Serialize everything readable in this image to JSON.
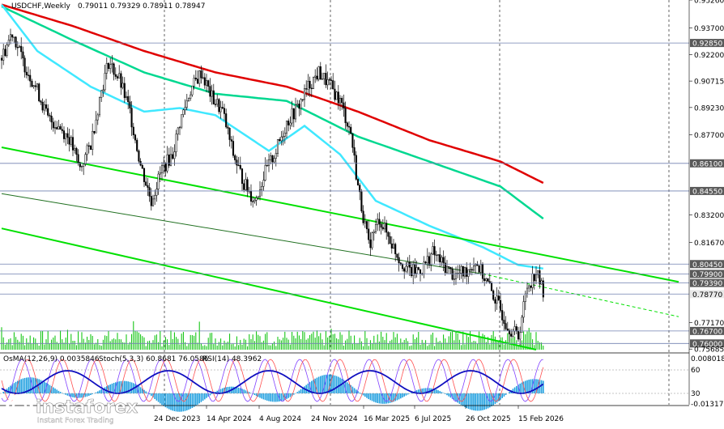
{
  "header": {
    "symbol": "USDCHF,Weekly",
    "ohlc": "0.79011 0.79329 0.78911 0.78947"
  },
  "indicators_label": {
    "osma": "OsMA(12,26,9) 0.0035846",
    "stoch": "Stoch(5,3,3) 60.8681 76.0586",
    "rsi": "RSI(14) 48.3962"
  },
  "colors": {
    "ema200": "#e00000",
    "ema144": "#00d890",
    "ema50": "#40e8ff",
    "channel": "#00e000",
    "histogram": "#20a0e0",
    "volume": "#00c000",
    "stoch_main": "#8040ff",
    "stoch_signal": "#ff5050",
    "rsi": "#1010c0"
  },
  "chart_data": {
    "type": "candlestick",
    "instrument": "USDCHF",
    "timeframe": "Weekly",
    "ylim": [
      0.7565,
      0.9526
    ],
    "price_axis": [
      "0.95260",
      "0.93700",
      "0.92850",
      "0.92200",
      "0.90715",
      "0.89230",
      "0.87700",
      "0.86100",
      "0.84550",
      "0.83200",
      "0.81670",
      "0.80450",
      "0.79900",
      "0.79390",
      "0.78770",
      "0.77170",
      "0.76700",
      "0.76000",
      "0.75685"
    ],
    "highlighted_levels": [
      "0.92850",
      "0.86100",
      "0.84550",
      "0.80450",
      "0.79900",
      "0.79390",
      "0.78770",
      "0.76700",
      "0.76000"
    ],
    "current_price": "0.78770",
    "x_labels": [
      "24 Dec 2023",
      "14 Apr 2024",
      "4 Aug 2024",
      "24 Nov 2024",
      "16 Mar 2025",
      "6 Jul 2025",
      "26 Oct 2025",
      "15 Feb 2026"
    ],
    "close_path": [
      [
        0,
        0.92
      ],
      [
        6,
        0.935
      ],
      [
        12,
        0.918
      ],
      [
        20,
        0.902
      ],
      [
        26,
        0.886
      ],
      [
        32,
        0.882
      ],
      [
        38,
        0.875
      ],
      [
        44,
        0.858
      ],
      [
        50,
        0.872
      ],
      [
        56,
        0.902
      ],
      [
        60,
        0.918
      ],
      [
        66,
        0.908
      ],
      [
        72,
        0.89
      ],
      [
        78,
        0.86
      ],
      [
        84,
        0.84
      ],
      [
        90,
        0.858
      ],
      [
        96,
        0.866
      ],
      [
        100,
        0.884
      ],
      [
        106,
        0.902
      ],
      [
        112,
        0.912
      ],
      [
        118,
        0.898
      ],
      [
        124,
        0.89
      ],
      [
        130,
        0.866
      ],
      [
        136,
        0.85
      ],
      [
        142,
        0.84
      ],
      [
        148,
        0.856
      ],
      [
        154,
        0.868
      ],
      [
        160,
        0.884
      ],
      [
        166,
        0.892
      ],
      [
        172,
        0.904
      ],
      [
        178,
        0.912
      ],
      [
        184,
        0.905
      ],
      [
        190,
        0.896
      ],
      [
        196,
        0.878
      ],
      [
        200,
        0.848
      ],
      [
        206,
        0.815
      ],
      [
        212,
        0.83
      ],
      [
        218,
        0.818
      ],
      [
        224,
        0.806
      ],
      [
        230,
        0.8
      ],
      [
        236,
        0.802
      ],
      [
        242,
        0.811
      ],
      [
        248,
        0.804
      ],
      [
        254,
        0.798
      ],
      [
        260,
        0.8
      ],
      [
        266,
        0.806
      ],
      [
        272,
        0.795
      ],
      [
        278,
        0.783
      ],
      [
        284,
        0.77
      ],
      [
        290,
        0.764
      ],
      [
        295,
        0.792
      ],
      [
        300,
        0.8
      ],
      [
        304,
        0.7895
      ]
    ],
    "ema200": [
      [
        0,
        0.95
      ],
      [
        40,
        0.938
      ],
      [
        80,
        0.924
      ],
      [
        120,
        0.912
      ],
      [
        160,
        0.904
      ],
      [
        200,
        0.89
      ],
      [
        240,
        0.874
      ],
      [
        280,
        0.862
      ],
      [
        304,
        0.85
      ]
    ],
    "ema144": [
      [
        0,
        0.949
      ],
      [
        40,
        0.93
      ],
      [
        80,
        0.912
      ],
      [
        120,
        0.9
      ],
      [
        160,
        0.896
      ],
      [
        200,
        0.876
      ],
      [
        240,
        0.862
      ],
      [
        280,
        0.848
      ],
      [
        304,
        0.83
      ]
    ],
    "ema50": [
      [
        0,
        0.95
      ],
      [
        20,
        0.924
      ],
      [
        50,
        0.904
      ],
      [
        80,
        0.89
      ],
      [
        100,
        0.892
      ],
      [
        120,
        0.888
      ],
      [
        150,
        0.868
      ],
      [
        170,
        0.882
      ],
      [
        190,
        0.866
      ],
      [
        210,
        0.84
      ],
      [
        240,
        0.826
      ],
      [
        270,
        0.814
      ],
      [
        290,
        0.804
      ],
      [
        304,
        0.802
      ]
    ],
    "channel_lines": [
      {
        "from": [
          0,
          0.87
        ],
        "to": [
          380,
          0.7945
        ],
        "style": "solid",
        "width": 2
      },
      {
        "from": [
          0,
          0.844
        ],
        "to": [
          270,
          0.799
        ],
        "style": "solid",
        "width": 1,
        "dark": true
      },
      {
        "from": [
          270,
          0.799
        ],
        "to": [
          380,
          0.775
        ],
        "style": "dashed",
        "width": 1
      },
      {
        "from": [
          0,
          0.8245
        ],
        "to": [
          300,
          0.7565
        ],
        "style": "solid",
        "width": 2
      }
    ],
    "osma_axis": [
      "0.0080186",
      "60",
      "30",
      "-0.013172"
    ]
  },
  "branding": {
    "name": "instaforex",
    "tagline": "Instant Forex Trading"
  }
}
